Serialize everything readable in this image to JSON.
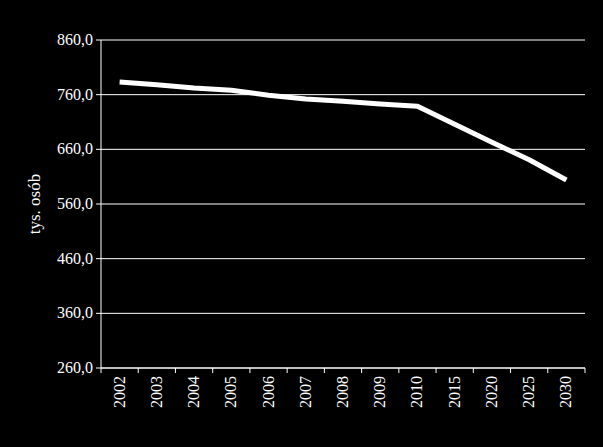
{
  "chart_data": {
    "type": "line",
    "y_label": "tys. osób",
    "categories": [
      "2002",
      "2003",
      "2004",
      "2005",
      "2006",
      "2007",
      "2008",
      "2009",
      "2010",
      "2015",
      "2020",
      "2025",
      "2030"
    ],
    "values": [
      783,
      778,
      772,
      768,
      759,
      752,
      748,
      743,
      739,
      706,
      673,
      641,
      604
    ],
    "color": "#ffffff",
    "ylim": [
      260,
      860
    ],
    "yticks": [
      {
        "value": 260,
        "label": "260,0"
      },
      {
        "value": 360,
        "label": "360,0"
      },
      {
        "value": 460,
        "label": "460,0"
      },
      {
        "value": 560,
        "label": "560,0"
      },
      {
        "value": 660,
        "label": "660,0"
      },
      {
        "value": 760,
        "label": "760,0"
      },
      {
        "value": 860,
        "label": "860,0"
      }
    ],
    "grid": true
  }
}
